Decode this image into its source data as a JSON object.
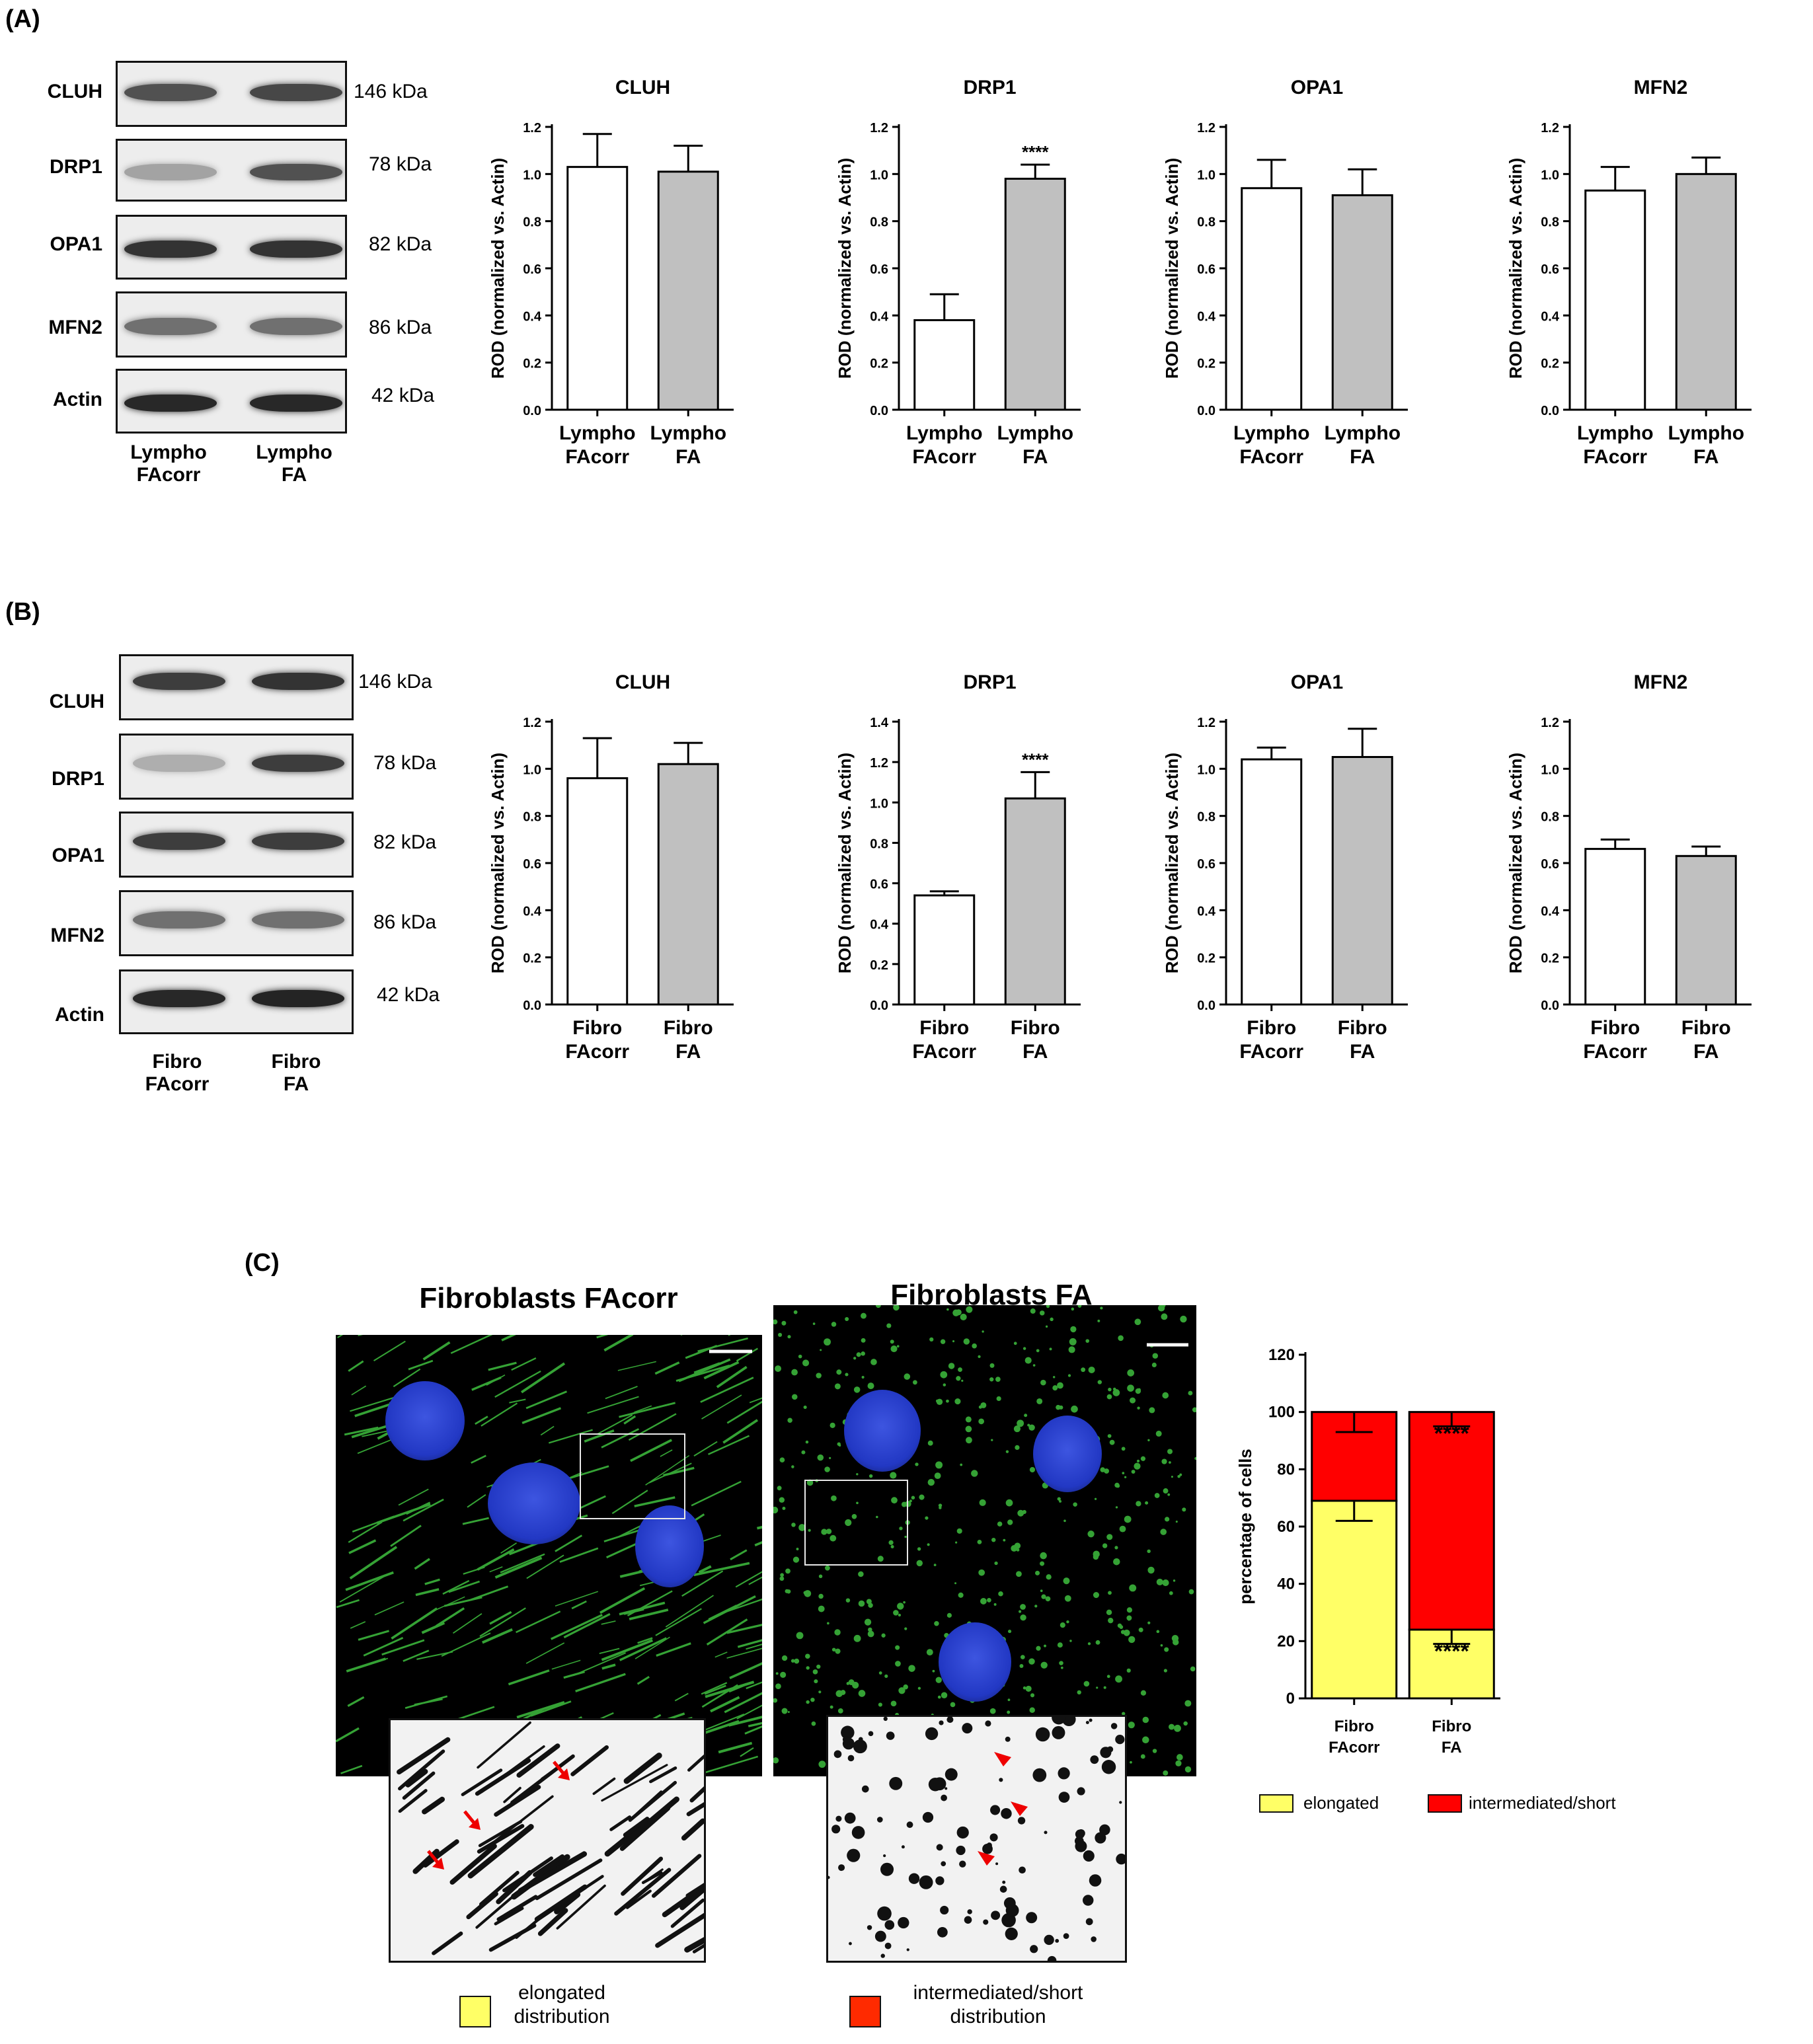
{
  "panels": {
    "A": {
      "label": "(A)",
      "blot": {
        "proteins": [
          "CLUH",
          "DRP1",
          "OPA1",
          "MFN2",
          "Actin"
        ],
        "kda": [
          "146 kDa",
          "78 kDa",
          "82 kDa",
          "86 kDa",
          "42 kDa"
        ],
        "lanes": [
          [
            "Lympho",
            "FAcorr"
          ],
          [
            "Lympho",
            "FA"
          ]
        ],
        "band_intensity": [
          [
            0.75,
            0.8
          ],
          [
            0.35,
            0.75
          ],
          [
            0.9,
            0.9
          ],
          [
            0.6,
            0.6
          ],
          [
            0.95,
            0.95
          ]
        ]
      }
    },
    "B": {
      "label": "(B)",
      "blot": {
        "proteins": [
          "CLUH",
          "DRP1",
          "OPA1",
          "MFN2",
          "Actin"
        ],
        "kda": [
          "146 kDa",
          "78 kDa",
          "82 kDa",
          "86 kDa",
          "42 kDa"
        ],
        "lanes": [
          [
            "Fibro",
            "FAcorr"
          ],
          [
            "Fibro",
            "FA"
          ]
        ],
        "band_intensity": [
          [
            0.85,
            0.9
          ],
          [
            0.3,
            0.85
          ],
          [
            0.85,
            0.85
          ],
          [
            0.6,
            0.6
          ],
          [
            0.95,
            0.97
          ]
        ]
      }
    },
    "C": {
      "label": "(C)",
      "image_titles": [
        "Fibroblasts FAcorr",
        "Fibroblasts FA"
      ],
      "inset_legend": [
        {
          "lines": [
            "elongated",
            "distribution"
          ],
          "color": "#ffff66"
        },
        {
          "lines": [
            "intermediated/short",
            "distribution"
          ],
          "color": "#ff2a00"
        }
      ],
      "bar_legend": [
        {
          "label": "elongated",
          "color": "#ffff66"
        },
        {
          "label": "intermediated/short",
          "color": "#ff0000"
        }
      ]
    }
  },
  "chart_data": [
    {
      "id": "A-CLUH",
      "type": "bar",
      "title": "CLUH",
      "ylabel": "ROD (normalized vs. Actin)",
      "ylim": [
        0,
        1.2
      ],
      "yticks": [
        "0.0",
        "0.2",
        "0.4",
        "0.6",
        "0.8",
        "1.0",
        "1.2"
      ],
      "categories": [
        [
          "Lympho",
          "FAcorr"
        ],
        [
          "Lympho",
          "FA"
        ]
      ],
      "values": [
        1.03,
        1.01
      ],
      "errors": [
        0.14,
        0.11
      ],
      "colors": [
        "#ffffff",
        "#c0c0c0"
      ],
      "annotations": [
        "",
        ""
      ]
    },
    {
      "id": "A-DRP1",
      "type": "bar",
      "title": "DRP1",
      "ylabel": "ROD (normalized vs. Actin)",
      "ylim": [
        0,
        1.2
      ],
      "yticks": [
        "0.0",
        "0.2",
        "0.4",
        "0.6",
        "0.8",
        "1.0",
        "1.2"
      ],
      "categories": [
        [
          "Lympho",
          "FAcorr"
        ],
        [
          "Lympho",
          "FA"
        ]
      ],
      "values": [
        0.38,
        0.98
      ],
      "errors": [
        0.11,
        0.06
      ],
      "colors": [
        "#ffffff",
        "#c0c0c0"
      ],
      "annotations": [
        "",
        "****"
      ]
    },
    {
      "id": "A-OPA1",
      "type": "bar",
      "title": "OPA1",
      "ylabel": "ROD (normalized vs. Actin)",
      "ylim": [
        0,
        1.2
      ],
      "yticks": [
        "0.0",
        "0.2",
        "0.4",
        "0.6",
        "0.8",
        "1.0",
        "1.2"
      ],
      "categories": [
        [
          "Lympho",
          "FAcorr"
        ],
        [
          "Lympho",
          "FA"
        ]
      ],
      "values": [
        0.94,
        0.91
      ],
      "errors": [
        0.12,
        0.11
      ],
      "colors": [
        "#ffffff",
        "#c0c0c0"
      ],
      "annotations": [
        "",
        ""
      ]
    },
    {
      "id": "A-MFN2",
      "type": "bar",
      "title": "MFN2",
      "ylabel": "ROD (normalized vs. Actin)",
      "ylim": [
        0,
        1.2
      ],
      "yticks": [
        "0.0",
        "0.2",
        "0.4",
        "0.6",
        "0.8",
        "1.0",
        "1.2"
      ],
      "categories": [
        [
          "Lympho",
          "FAcorr"
        ],
        [
          "Lympho",
          "FA"
        ]
      ],
      "values": [
        0.93,
        1.0
      ],
      "errors": [
        0.1,
        0.07
      ],
      "colors": [
        "#ffffff",
        "#c0c0c0"
      ],
      "annotations": [
        "",
        ""
      ]
    },
    {
      "id": "B-CLUH",
      "type": "bar",
      "title": "CLUH",
      "ylabel": "ROD (normalized vs. Actin)",
      "ylim": [
        0,
        1.2
      ],
      "yticks": [
        "0.0",
        "0.2",
        "0.4",
        "0.6",
        "0.8",
        "1.0",
        "1.2"
      ],
      "categories": [
        [
          "Fibro",
          "FAcorr"
        ],
        [
          "Fibro",
          "FA"
        ]
      ],
      "values": [
        0.96,
        1.02
      ],
      "errors": [
        0.17,
        0.09
      ],
      "colors": [
        "#ffffff",
        "#c0c0c0"
      ],
      "annotations": [
        "",
        ""
      ]
    },
    {
      "id": "B-DRP1",
      "type": "bar",
      "title": "DRP1",
      "ylabel": "ROD (normalized vs. Actin)",
      "ylim": [
        0,
        1.4
      ],
      "yticks": [
        "0.0",
        "0.2",
        "0.4",
        "0.6",
        "0.8",
        "1.0",
        "1.2",
        "1.4"
      ],
      "categories": [
        [
          "Fibro",
          "FAcorr"
        ],
        [
          "Fibro",
          "FA"
        ]
      ],
      "values": [
        0.54,
        1.02
      ],
      "errors": [
        0.02,
        0.13
      ],
      "colors": [
        "#ffffff",
        "#c0c0c0"
      ],
      "annotations": [
        "",
        "****"
      ]
    },
    {
      "id": "B-OPA1",
      "type": "bar",
      "title": "OPA1",
      "ylabel": "ROD (normalized vs. Actin)",
      "ylim": [
        0,
        1.2
      ],
      "yticks": [
        "0.0",
        "0.2",
        "0.4",
        "0.6",
        "0.8",
        "1.0",
        "1.2"
      ],
      "categories": [
        [
          "Fibro",
          "FAcorr"
        ],
        [
          "Fibro",
          "FA"
        ]
      ],
      "values": [
        1.04,
        1.05
      ],
      "errors": [
        0.05,
        0.12
      ],
      "colors": [
        "#ffffff",
        "#c0c0c0"
      ],
      "annotations": [
        "",
        ""
      ]
    },
    {
      "id": "B-MFN2",
      "type": "bar",
      "title": "MFN2",
      "ylabel": "ROD (normalized vs. Actin)",
      "ylim": [
        0,
        1.2
      ],
      "yticks": [
        "0.0",
        "0.2",
        "0.4",
        "0.6",
        "0.8",
        "1.0",
        "1.2"
      ],
      "categories": [
        [
          "Fibro",
          "FAcorr"
        ],
        [
          "Fibro",
          "FA"
        ]
      ],
      "values": [
        0.66,
        0.63
      ],
      "errors": [
        0.04,
        0.04
      ],
      "colors": [
        "#ffffff",
        "#c0c0c0"
      ],
      "annotations": [
        "",
        ""
      ]
    },
    {
      "id": "C-stacked",
      "type": "bar",
      "stacked": true,
      "title": "",
      "ylabel": "percentage of cells",
      "ylim": [
        0,
        120
      ],
      "yticks": [
        "0",
        "20",
        "40",
        "60",
        "80",
        "100",
        "120"
      ],
      "categories": [
        [
          "Fibro",
          "FAcorr"
        ],
        [
          "Fibro",
          "FA"
        ]
      ],
      "series": [
        {
          "name": "elongated",
          "values": [
            69,
            24
          ],
          "errors": [
            7,
            5
          ],
          "color": "#ffff66",
          "annotations": [
            "",
            "****"
          ]
        },
        {
          "name": "intermediated/short",
          "values": [
            31,
            76
          ],
          "errors": [
            7,
            5
          ],
          "color": "#ff0000",
          "annotations": [
            "",
            "****"
          ]
        }
      ]
    }
  ]
}
